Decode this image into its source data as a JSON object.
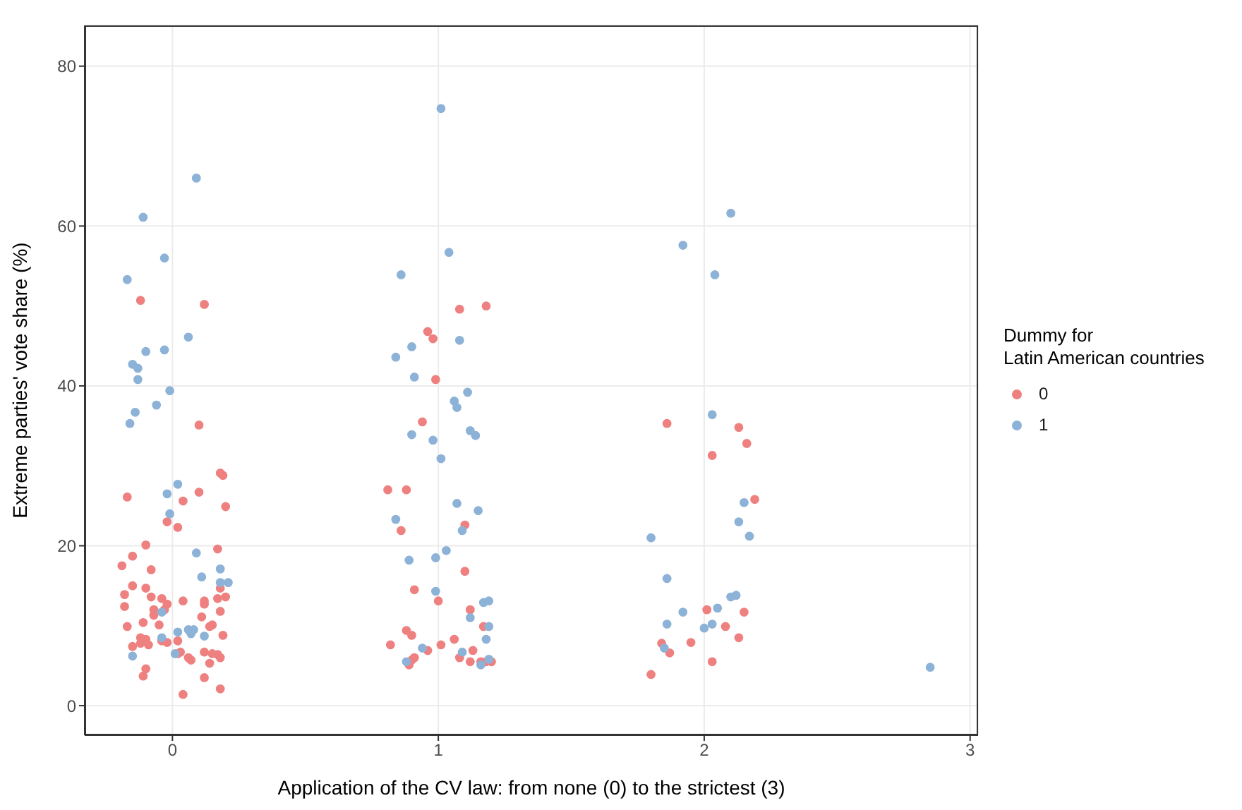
{
  "chart_data": {
    "type": "scatter",
    "xlabel": "Application of the CV law: from none (0) to the strictest (3)",
    "ylabel": "Extreme parties' vote share (%)",
    "legend_title": "Dummy for\nLatin American countries",
    "legend": "right",
    "grid": true,
    "marker": "circle",
    "xlim": [
      -0.33,
      3.03
    ],
    "xticks": [
      0,
      1,
      2,
      3
    ],
    "ylim": [
      -3.7,
      85.1
    ],
    "yticks": [
      0,
      20,
      40,
      60,
      80
    ],
    "series": [
      {
        "name": "0",
        "color": "#ef8080",
        "x": [
          -0.12,
          0.12,
          0.1,
          0.18,
          0.19,
          -0.17,
          0.1,
          0.04,
          0.2,
          -0.02,
          0.02,
          -0.1,
          0.17,
          -0.15,
          -0.19,
          -0.08,
          -0.15,
          -0.1,
          -0.18,
          -0.08,
          -0.04,
          -0.02,
          0.04,
          0.12,
          0.12,
          0.18,
          0.2,
          0.17,
          -0.18,
          -0.07,
          -0.03,
          0.18,
          -0.07,
          0.11,
          -0.11,
          -0.05,
          -0.17,
          0.14,
          0.15,
          -0.12,
          -0.1,
          -0.04,
          -0.02,
          0.02,
          0.19,
          -0.15,
          -0.12,
          -0.09,
          0.12,
          0.15,
          0.17,
          0.18,
          0.02,
          0.03,
          0.06,
          0.07,
          0.14,
          -0.1,
          -0.11,
          0.12,
          0.18,
          0.04,
          1.08,
          1.18,
          0.96,
          0.98,
          0.99,
          0.94,
          0.81,
          0.88,
          0.86,
          1.1,
          1.1,
          0.91,
          1.0,
          1.12,
          1.17,
          0.88,
          0.9,
          0.82,
          1.06,
          1.01,
          0.96,
          1.13,
          0.91,
          0.9,
          0.89,
          1.08,
          1.12,
          1.16,
          1.18,
          1.2,
          1.86,
          2.13,
          2.16,
          2.03,
          2.19,
          2.01,
          2.15,
          2.08,
          2.13,
          1.84,
          1.95,
          1.87,
          2.03,
          1.8
        ],
        "values": [
          50.7,
          50.2,
          35.1,
          29.1,
          28.8,
          26.1,
          26.7,
          25.6,
          24.9,
          23.0,
          22.3,
          20.1,
          19.6,
          18.7,
          17.5,
          17.0,
          15.0,
          14.7,
          13.9,
          13.6,
          13.4,
          12.7,
          13.1,
          13.1,
          12.7,
          14.7,
          13.6,
          13.4,
          12.4,
          12.0,
          12.0,
          11.8,
          11.3,
          11.1,
          10.4,
          10.1,
          9.9,
          9.9,
          10.1,
          8.5,
          8.3,
          8.1,
          7.9,
          8.1,
          8.8,
          7.4,
          7.8,
          7.6,
          6.7,
          6.5,
          6.4,
          6.0,
          6.5,
          6.7,
          6.0,
          5.7,
          5.3,
          4.6,
          3.7,
          3.5,
          2.1,
          1.4,
          49.6,
          50.0,
          46.8,
          45.9,
          40.8,
          35.5,
          27.0,
          27.0,
          21.9,
          22.6,
          16.8,
          14.5,
          13.1,
          12.0,
          9.9,
          9.4,
          8.8,
          7.6,
          8.3,
          7.6,
          6.9,
          6.9,
          6.0,
          5.7,
          5.1,
          6.0,
          5.5,
          5.5,
          5.5,
          5.5,
          35.3,
          34.8,
          32.8,
          31.3,
          25.8,
          12.0,
          11.7,
          9.9,
          8.5,
          7.8,
          7.9,
          6.6,
          5.5,
          3.9
        ]
      },
      {
        "name": "1",
        "color": "#8db2d8",
        "x": [
          0.09,
          -0.11,
          -0.03,
          -0.17,
          0.06,
          -0.1,
          -0.03,
          -0.15,
          -0.13,
          -0.13,
          -0.01,
          -0.06,
          -0.14,
          -0.16,
          0.02,
          -0.02,
          -0.01,
          0.09,
          0.18,
          0.11,
          0.18,
          0.21,
          -0.04,
          0.06,
          0.02,
          0.07,
          0.08,
          0.12,
          -0.04,
          0.01,
          -0.15,
          1.01,
          1.04,
          0.86,
          1.08,
          0.9,
          0.84,
          0.91,
          1.11,
          1.06,
          1.07,
          1.12,
          1.14,
          0.9,
          0.98,
          1.01,
          1.07,
          1.15,
          0.84,
          1.09,
          1.03,
          0.99,
          0.89,
          0.99,
          1.17,
          1.19,
          1.12,
          1.19,
          1.18,
          0.94,
          1.09,
          0.88,
          1.16,
          1.19,
          2.1,
          1.92,
          2.04,
          2.03,
          2.15,
          2.13,
          2.17,
          1.8,
          1.86,
          2.1,
          2.12,
          1.92,
          2.05,
          1.86,
          2.03,
          2.0,
          1.85,
          2.85
        ],
        "values": [
          66.0,
          61.1,
          56.0,
          53.3,
          46.1,
          44.3,
          44.5,
          42.7,
          42.2,
          40.8,
          39.4,
          37.6,
          36.7,
          35.3,
          27.7,
          26.5,
          24.0,
          19.1,
          17.1,
          16.1,
          15.4,
          15.4,
          11.7,
          9.5,
          9.2,
          9.0,
          9.5,
          8.7,
          8.5,
          6.5,
          6.2,
          74.7,
          56.7,
          53.9,
          45.7,
          44.9,
          43.6,
          41.1,
          39.2,
          38.1,
          37.3,
          34.4,
          33.8,
          33.9,
          33.2,
          30.9,
          25.3,
          24.4,
          23.3,
          21.9,
          19.4,
          18.5,
          18.2,
          14.3,
          12.9,
          13.1,
          11.0,
          9.9,
          8.3,
          7.2,
          6.7,
          5.5,
          5.1,
          5.8,
          61.6,
          57.6,
          53.9,
          36.4,
          25.4,
          23.0,
          21.2,
          21.0,
          15.9,
          13.6,
          13.8,
          11.7,
          12.2,
          10.2,
          10.2,
          9.7,
          7.2,
          4.8
        ]
      }
    ]
  }
}
